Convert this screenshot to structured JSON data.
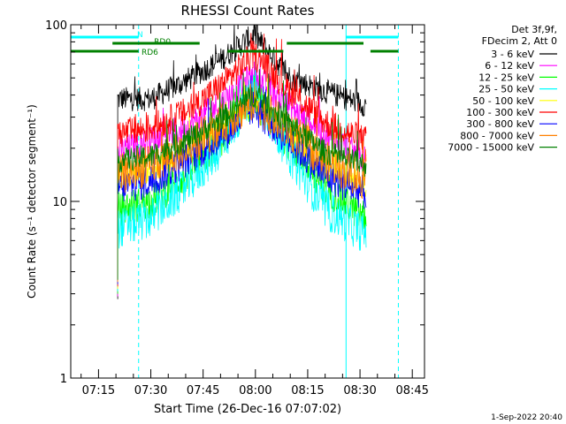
{
  "chart_data": {
    "type": "line",
    "title": "RHESSI Count Rates",
    "xlabel": "Start Time (26-Dec-16 07:07:02)",
    "ylabel": "Count Rate (s⁻¹ detector segment⁻¹)",
    "y_scale": "log",
    "ylim": [
      1,
      100
    ],
    "xlim": [
      "07:07:02",
      "08:48:30"
    ],
    "x_ticks": [
      "07:15",
      "07:30",
      "07:45",
      "08:00",
      "08:15",
      "08:30",
      "08:45"
    ],
    "y_ticks": [
      "1",
      "10",
      "100"
    ],
    "legend_header": [
      "Det 3f,9f,",
      "FDecim 2, Att 0"
    ],
    "legend_position": "right",
    "timestamp": "1-Sep-2022 20:40",
    "data_window": [
      "07:20:30",
      "08:31:45"
    ],
    "peak_time": "07:59:30",
    "series": [
      {
        "name": "3 - 6 keV",
        "color": "#000000",
        "x": [
          "07:20:30",
          "07:30",
          "07:40",
          "07:50",
          "07:59:30",
          "08:10",
          "08:20",
          "08:31:45"
        ],
        "y": [
          38,
          38,
          48,
          63,
          88,
          50,
          42,
          35
        ]
      },
      {
        "name": "6 - 12 keV",
        "color": "#ff00ff",
        "x": [
          "07:20:30",
          "07:30",
          "07:40",
          "07:50",
          "07:59:30",
          "08:10",
          "08:20",
          "08:31:45"
        ],
        "y": [
          19,
          22,
          26,
          36,
          52,
          34,
          24,
          17
        ]
      },
      {
        "name": "12 - 25 keV",
        "color": "#00ff00",
        "x": [
          "07:20:30",
          "07:30",
          "07:40",
          "07:50",
          "07:59:30",
          "08:10",
          "08:20",
          "08:31:45"
        ],
        "y": [
          9,
          10,
          14,
          22,
          38,
          21,
          12,
          8
        ]
      },
      {
        "name": "25 - 50 keV",
        "color": "#00ffff",
        "x": [
          "07:20:30",
          "07:30",
          "07:40",
          "07:50",
          "07:59:30",
          "08:10",
          "08:20",
          "08:31:45"
        ],
        "y": [
          7,
          8,
          12,
          20,
          42,
          18,
          9,
          6.5
        ]
      },
      {
        "name": "50 - 100 keV",
        "color": "#ffff00",
        "x": [
          "07:20:30",
          "07:30",
          "07:40",
          "07:50",
          "07:59:30",
          "08:10",
          "08:20",
          "08:31:45"
        ],
        "y": [
          13,
          15,
          19,
          26,
          36,
          23,
          16,
          12
        ]
      },
      {
        "name": "100 - 300 keV",
        "color": "#ff0000",
        "x": [
          "07:20:30",
          "07:30",
          "07:40",
          "07:50",
          "07:59:30",
          "08:10",
          "08:20",
          "08:31:45"
        ],
        "y": [
          24,
          26,
          32,
          45,
          68,
          42,
          28,
          22
        ]
      },
      {
        "name": "300 - 800 keV",
        "color": "#0000ff",
        "x": [
          "07:20:30",
          "07:30",
          "07:40",
          "07:50",
          "07:59:30",
          "08:10",
          "08:20",
          "08:31:45"
        ],
        "y": [
          12,
          13,
          17,
          23,
          34,
          22,
          14,
          11
        ]
      },
      {
        "name": "800 - 7000 keV",
        "color": "#ff8000",
        "x": [
          "07:20:30",
          "07:30",
          "07:40",
          "07:50",
          "07:59:30",
          "08:10",
          "08:20",
          "08:31:45"
        ],
        "y": [
          14,
          16,
          20,
          27,
          37,
          25,
          17,
          13
        ]
      },
      {
        "name": "7000 - 15000 keV",
        "color": "#008000",
        "x": [
          "07:20:30",
          "07:30",
          "07:40",
          "07:50",
          "07:59:30",
          "08:10",
          "08:20",
          "08:31:45"
        ],
        "y": [
          17,
          18,
          22,
          29,
          40,
          27,
          19,
          16
        ]
      }
    ],
    "flags": [
      {
        "label": "N",
        "color": "#00ffff",
        "intervals": [
          [
            "07:07:02",
            "07:26:30"
          ],
          [
            "08:26:00",
            "08:41:00"
          ]
        ]
      },
      {
        "label": "RD0",
        "color": "#008000",
        "intervals": [
          [
            "07:19:00",
            "07:44:00"
          ],
          [
            "08:09:00",
            "08:31:00"
          ]
        ]
      },
      {
        "label": "RD6",
        "color": "#008000",
        "intervals": [
          [
            "07:07:02",
            "07:26:30"
          ],
          [
            "07:52:00",
            "08:08:00"
          ],
          [
            "08:33:00",
            "08:41:00"
          ]
        ]
      }
    ],
    "vertical_lines": [
      {
        "time": "07:26:30",
        "color": "#00ffff",
        "style": "dashed"
      },
      {
        "time": "08:26:00",
        "color": "#00ffff",
        "style": "solid"
      },
      {
        "time": "08:41:00",
        "color": "#00ffff",
        "style": "dashed"
      }
    ]
  }
}
